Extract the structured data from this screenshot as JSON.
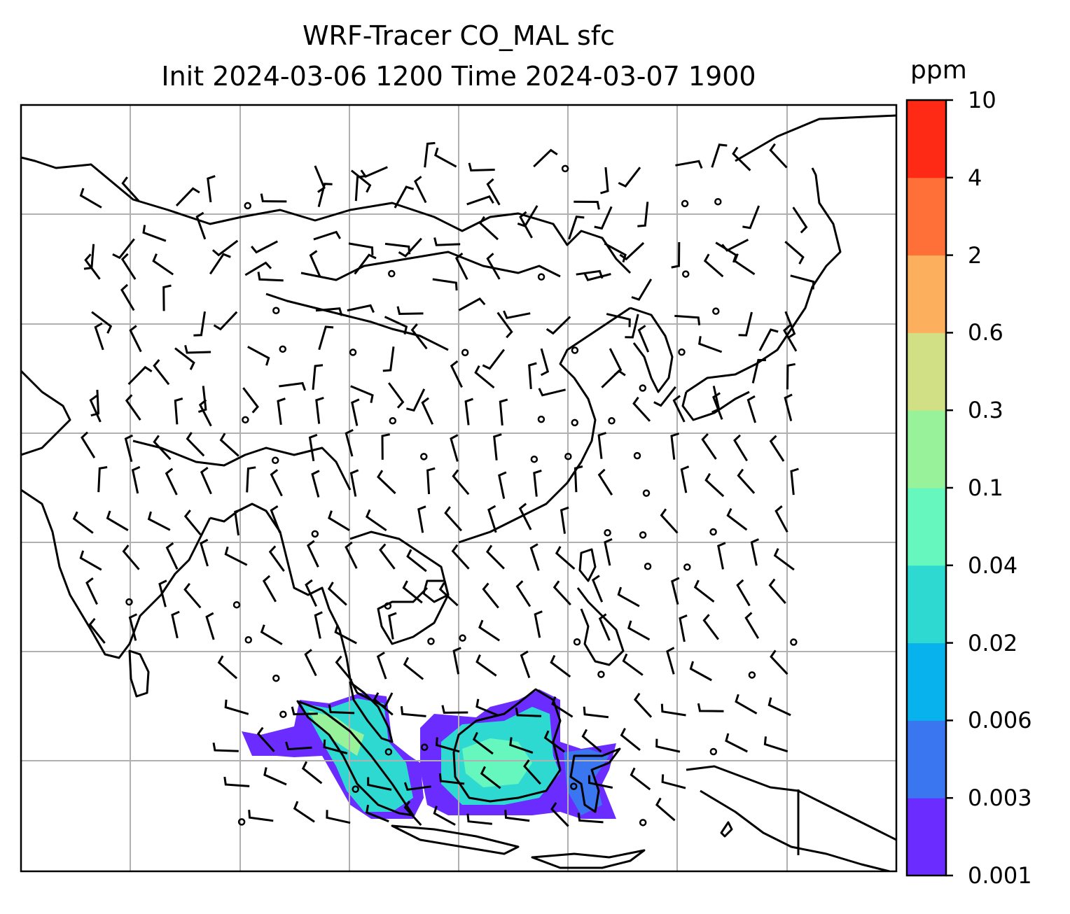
{
  "title": {
    "line1": "WRF-Tracer CO_MAL sfc",
    "line2": "Init 2024-03-06 1200 Time 2024-03-07 1900"
  },
  "colorbar": {
    "unit": "ppm",
    "ticks": [
      "0.001",
      "0.003",
      "0.006",
      "0.02",
      "0.04",
      "0.1",
      "0.3",
      "0.6",
      "2",
      "4",
      "10"
    ],
    "colors": [
      "#6a2cff",
      "#3a76f0",
      "#08b2ec",
      "#2ed9d2",
      "#66f7be",
      "#98f29a",
      "#d1e084",
      "#fcb05e",
      "#fe7038",
      "#ff2a16"
    ]
  },
  "map": {
    "gridlines": true,
    "coastline_color": "#000000",
    "grid_color": "#b0b0b0"
  }
}
